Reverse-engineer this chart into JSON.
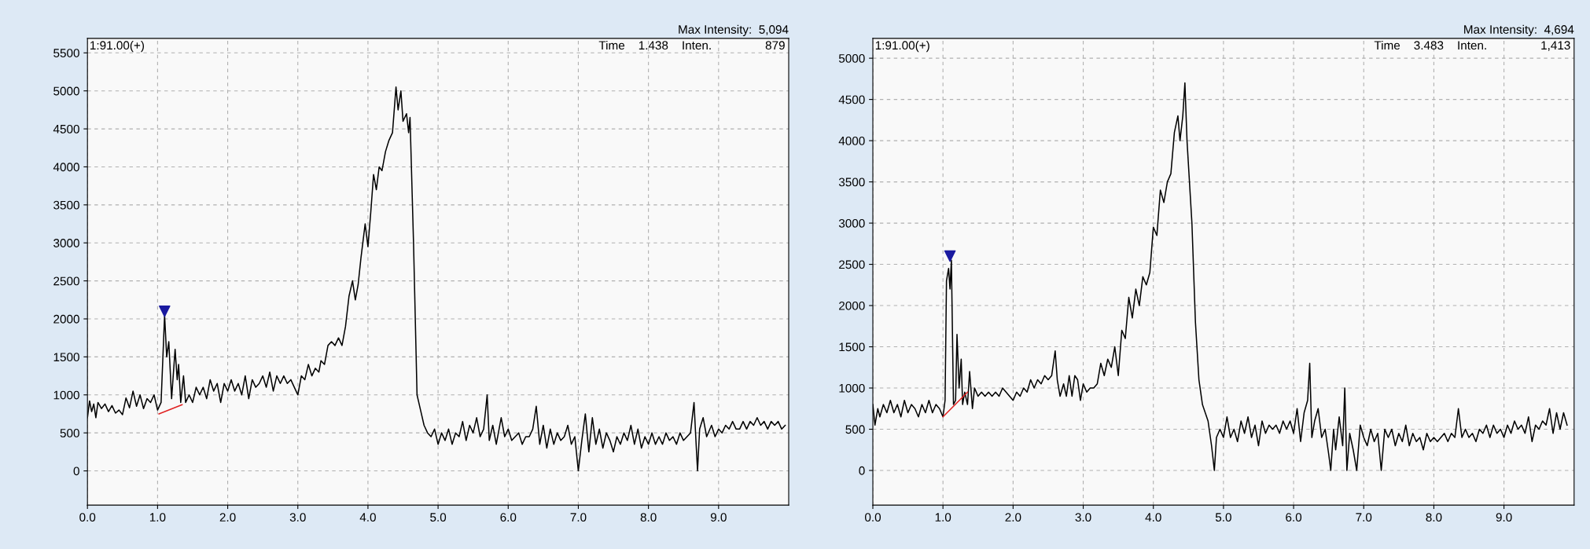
{
  "chart_data": [
    {
      "type": "line",
      "annotations": [
        "Max Intensity:  5,094",
        "1:91.00(+)",
        "Time    1.438    Inten.                879"
      ],
      "xlim": [
        0,
        10
      ],
      "ylim": [
        -450,
        5690
      ],
      "xticks": [
        {
          "value": 0,
          "label": "0.0"
        },
        {
          "value": 1,
          "label": "1.0"
        },
        {
          "value": 2,
          "label": "2.0"
        },
        {
          "value": 3,
          "label": "3.0"
        },
        {
          "value": 4,
          "label": "4.0"
        },
        {
          "value": 5,
          "label": "5.0"
        },
        {
          "value": 6,
          "label": "6.0"
        },
        {
          "value": 7,
          "label": "7.0"
        },
        {
          "value": 8,
          "label": "8.0"
        },
        {
          "value": 9,
          "label": "9.0"
        }
      ],
      "yticks": [
        0,
        500,
        1000,
        1500,
        2000,
        2500,
        3000,
        3500,
        4000,
        4500,
        5000,
        5500
      ],
      "grid": true,
      "series": [
        {
          "type": "line",
          "color": "#000000",
          "x": [
            0.0,
            0.03,
            0.06,
            0.09,
            0.12,
            0.15,
            0.2,
            0.25,
            0.3,
            0.35,
            0.4,
            0.45,
            0.5,
            0.55,
            0.6,
            0.65,
            0.7,
            0.75,
            0.8,
            0.85,
            0.9,
            0.95,
            1.0,
            1.05,
            1.1,
            1.13,
            1.16,
            1.2,
            1.25,
            1.28,
            1.3,
            1.33,
            1.37,
            1.4,
            1.45,
            1.5,
            1.55,
            1.6,
            1.65,
            1.7,
            1.75,
            1.8,
            1.85,
            1.9,
            1.95,
            2.0,
            2.05,
            2.1,
            2.15,
            2.2,
            2.25,
            2.3,
            2.35,
            2.4,
            2.45,
            2.5,
            2.55,
            2.6,
            2.65,
            2.7,
            2.75,
            2.8,
            2.85,
            2.9,
            2.95,
            3.0,
            3.05,
            3.1,
            3.15,
            3.2,
            3.25,
            3.3,
            3.33,
            3.38,
            3.43,
            3.48,
            3.53,
            3.58,
            3.63,
            3.68,
            3.73,
            3.78,
            3.82,
            3.86,
            3.9,
            3.96,
            4.0,
            4.04,
            4.08,
            4.12,
            4.16,
            4.2,
            4.25,
            4.3,
            4.35,
            4.4,
            4.43,
            4.47,
            4.5,
            4.55,
            4.58,
            4.6,
            4.65,
            4.7,
            4.75,
            4.8,
            4.85,
            4.9,
            4.95,
            5.0,
            5.05,
            5.1,
            5.15,
            5.2,
            5.25,
            5.3,
            5.35,
            5.4,
            5.45,
            5.5,
            5.55,
            5.6,
            5.65,
            5.7,
            5.73,
            5.78,
            5.83,
            5.9,
            5.95,
            6.0,
            6.05,
            6.1,
            6.15,
            6.2,
            6.25,
            6.3,
            6.35,
            6.4,
            6.45,
            6.5,
            6.55,
            6.6,
            6.65,
            6.7,
            6.75,
            6.8,
            6.85,
            6.9,
            6.95,
            7.0,
            7.05,
            7.1,
            7.15,
            7.2,
            7.25,
            7.3,
            7.35,
            7.4,
            7.45,
            7.5,
            7.55,
            7.6,
            7.65,
            7.7,
            7.75,
            7.8,
            7.85,
            7.9,
            7.95,
            8.0,
            8.05,
            8.1,
            8.15,
            8.2,
            8.25,
            8.3,
            8.35,
            8.4,
            8.45,
            8.5,
            8.55,
            8.6,
            8.65,
            8.68,
            8.7,
            8.73,
            8.78,
            8.83,
            8.9,
            8.95,
            9.0,
            9.05,
            9.1,
            9.15,
            9.2,
            9.25,
            9.3,
            9.35,
            9.4,
            9.45,
            9.5,
            9.55,
            9.6,
            9.65,
            9.7,
            9.75,
            9.8,
            9.85,
            9.9,
            9.95
          ],
          "values": [
            700,
            920,
            780,
            880,
            700,
            900,
            820,
            880,
            780,
            860,
            760,
            800,
            740,
            960,
            830,
            1050,
            850,
            1000,
            820,
            950,
            900,
            1000,
            800,
            900,
            2050,
            1500,
            1700,
            950,
            1600,
            1200,
            1400,
            900,
            1250,
            900,
            1000,
            900,
            1100,
            1000,
            1100,
            950,
            1200,
            1050,
            1150,
            900,
            1150,
            1050,
            1200,
            1050,
            1150,
            1000,
            1250,
            950,
            1200,
            1100,
            1150,
            1250,
            1100,
            1300,
            1050,
            1250,
            1150,
            1250,
            1150,
            1200,
            1100,
            1000,
            1250,
            1200,
            1400,
            1250,
            1350,
            1300,
            1450,
            1400,
            1650,
            1700,
            1650,
            1750,
            1650,
            1900,
            2300,
            2500,
            2250,
            2450,
            2800,
            3250,
            2950,
            3400,
            3900,
            3700,
            4000,
            3950,
            4200,
            4350,
            4450,
            5050,
            4750,
            5000,
            4600,
            4700,
            4450,
            4650,
            3000,
            1000,
            800,
            600,
            500,
            450,
            550,
            350,
            500,
            400,
            550,
            350,
            500,
            450,
            650,
            400,
            600,
            500,
            700,
            450,
            550,
            1000,
            400,
            600,
            350,
            700,
            450,
            550,
            400,
            450,
            500,
            350,
            450,
            450,
            550,
            850,
            350,
            600,
            300,
            550,
            350,
            500,
            400,
            450,
            600,
            350,
            450,
            0,
            400,
            750,
            250,
            700,
            350,
            550,
            300,
            500,
            400,
            250,
            450,
            350,
            500,
            400,
            600,
            350,
            550,
            300,
            450,
            350,
            500,
            350,
            450,
            350,
            500,
            400,
            450,
            350,
            500,
            400,
            450,
            500,
            900,
            350,
            0,
            550,
            700,
            450,
            600,
            450,
            550,
            500,
            600,
            550,
            650,
            550,
            550,
            650,
            550,
            650,
            600,
            700,
            600,
            650,
            550,
            650,
            600,
            650,
            550,
            600
          ]
        },
        {
          "type": "line",
          "color": "#e02020",
          "x": [
            1.02,
            1.35
          ],
          "values": [
            750,
            870
          ]
        },
        {
          "type": "scatter",
          "color": "#1a1aa0",
          "marker": "triangle",
          "x": [
            1.1
          ],
          "values": [
            2100
          ]
        }
      ]
    },
    {
      "type": "line",
      "annotations": [
        "Max Intensity:  4,694",
        "1:91.00(+)",
        "Time    3.483    Inten.                1,413"
      ],
      "xlim": [
        0,
        10
      ],
      "ylim": [
        -420,
        5240
      ],
      "xticks": [
        {
          "value": 0,
          "label": "0.0"
        },
        {
          "value": 1,
          "label": "1.0"
        },
        {
          "value": 2,
          "label": "2.0"
        },
        {
          "value": 3,
          "label": "3.0"
        },
        {
          "value": 4,
          "label": "4.0"
        },
        {
          "value": 5,
          "label": "5.0"
        },
        {
          "value": 6,
          "label": "6.0"
        },
        {
          "value": 7,
          "label": "7.0"
        },
        {
          "value": 8,
          "label": "8.0"
        },
        {
          "value": 9,
          "label": "9.0"
        }
      ],
      "yticks": [
        0,
        500,
        1000,
        1500,
        2000,
        2500,
        3000,
        3500,
        4000,
        4500,
        5000
      ],
      "grid": true,
      "series": [
        {
          "type": "line",
          "color": "#000000",
          "x": [
            0.0,
            0.03,
            0.07,
            0.1,
            0.15,
            0.2,
            0.25,
            0.3,
            0.35,
            0.4,
            0.45,
            0.5,
            0.55,
            0.6,
            0.65,
            0.7,
            0.75,
            0.8,
            0.85,
            0.9,
            0.95,
            1.0,
            1.03,
            1.05,
            1.08,
            1.1,
            1.12,
            1.15,
            1.18,
            1.2,
            1.23,
            1.26,
            1.28,
            1.31,
            1.35,
            1.38,
            1.42,
            1.45,
            1.5,
            1.55,
            1.6,
            1.65,
            1.7,
            1.75,
            1.8,
            1.85,
            1.9,
            1.95,
            2.0,
            2.05,
            2.1,
            2.15,
            2.2,
            2.25,
            2.3,
            2.35,
            2.4,
            2.45,
            2.5,
            2.55,
            2.6,
            2.63,
            2.67,
            2.72,
            2.76,
            2.8,
            2.84,
            2.88,
            2.92,
            2.96,
            3.0,
            3.05,
            3.1,
            3.15,
            3.2,
            3.25,
            3.3,
            3.35,
            3.4,
            3.45,
            3.5,
            3.55,
            3.6,
            3.65,
            3.7,
            3.75,
            3.8,
            3.85,
            3.9,
            3.95,
            4.0,
            4.05,
            4.1,
            4.15,
            4.2,
            4.25,
            4.3,
            4.35,
            4.38,
            4.42,
            4.45,
            4.48,
            4.55,
            4.6,
            4.65,
            4.7,
            4.78,
            4.83,
            4.87,
            4.9,
            4.95,
            5.0,
            5.05,
            5.1,
            5.15,
            5.2,
            5.25,
            5.3,
            5.35,
            5.4,
            5.45,
            5.5,
            5.55,
            5.6,
            5.65,
            5.7,
            5.75,
            5.8,
            5.85,
            5.9,
            5.95,
            6.0,
            6.05,
            6.1,
            6.15,
            6.2,
            6.23,
            6.26,
            6.3,
            6.35,
            6.4,
            6.45,
            6.5,
            6.53,
            6.57,
            6.6,
            6.65,
            6.7,
            6.73,
            6.76,
            6.8,
            6.85,
            6.9,
            6.95,
            7.0,
            7.05,
            7.1,
            7.15,
            7.2,
            7.25,
            7.3,
            7.35,
            7.4,
            7.45,
            7.5,
            7.55,
            7.6,
            7.65,
            7.7,
            7.75,
            7.8,
            7.85,
            7.9,
            7.95,
            8.0,
            8.05,
            8.1,
            8.15,
            8.2,
            8.25,
            8.3,
            8.35,
            8.4,
            8.45,
            8.5,
            8.55,
            8.6,
            8.65,
            8.7,
            8.75,
            8.8,
            8.85,
            8.9,
            8.95,
            9.0,
            9.05,
            9.1,
            9.15,
            9.2,
            9.25,
            9.3,
            9.35,
            9.4,
            9.45,
            9.5,
            9.55,
            9.6,
            9.65,
            9.7,
            9.75,
            9.8,
            9.85,
            9.9
          ],
          "values": [
            800,
            550,
            750,
            650,
            800,
            700,
            850,
            700,
            800,
            650,
            850,
            700,
            800,
            750,
            650,
            800,
            700,
            850,
            700,
            800,
            750,
            650,
            850,
            2300,
            2450,
            2200,
            2550,
            800,
            850,
            1650,
            1000,
            1350,
            800,
            950,
            800,
            1200,
            750,
            1000,
            900,
            950,
            900,
            950,
            900,
            950,
            900,
            1000,
            950,
            900,
            850,
            950,
            900,
            1000,
            950,
            1100,
            1000,
            1100,
            1050,
            1150,
            1100,
            1150,
            1450,
            1100,
            900,
            1050,
            900,
            1150,
            900,
            1150,
            1100,
            850,
            1050,
            950,
            1000,
            1000,
            1050,
            1300,
            1150,
            1350,
            1250,
            1500,
            1150,
            1700,
            1600,
            2100,
            1850,
            2200,
            2000,
            2350,
            2250,
            2400,
            2950,
            2850,
            3400,
            3250,
            3500,
            3600,
            4100,
            4300,
            4000,
            4300,
            4700,
            4000,
            3000,
            1800,
            1100,
            800,
            600,
            300,
            0,
            400,
            500,
            400,
            650,
            400,
            500,
            350,
            600,
            450,
            650,
            400,
            550,
            300,
            600,
            450,
            550,
            500,
            550,
            450,
            600,
            500,
            600,
            450,
            750,
            350,
            700,
            850,
            1300,
            400,
            600,
            750,
            400,
            500,
            200,
            0,
            500,
            250,
            650,
            300,
            1000,
            0,
            450,
            250,
            0,
            550,
            400,
            300,
            500,
            350,
            450,
            0,
            500,
            400,
            500,
            300,
            450,
            350,
            550,
            300,
            450,
            350,
            400,
            250,
            450,
            350,
            400,
            350,
            400,
            450,
            350,
            450,
            400,
            750,
            400,
            500,
            400,
            450,
            350,
            500,
            450,
            550,
            400,
            550,
            450,
            500,
            400,
            550,
            450,
            600,
            500,
            550,
            450,
            650,
            350,
            550,
            500,
            600,
            550,
            750,
            450,
            700,
            500,
            700,
            550
          ]
        },
        {
          "type": "line",
          "color": "#e02020",
          "x": [
            1.0,
            1.35
          ],
          "values": [
            650,
            950
          ]
        },
        {
          "type": "scatter",
          "color": "#1a1aa0",
          "marker": "triangle",
          "x": [
            1.1
          ],
          "values": [
            2600
          ]
        }
      ]
    }
  ]
}
